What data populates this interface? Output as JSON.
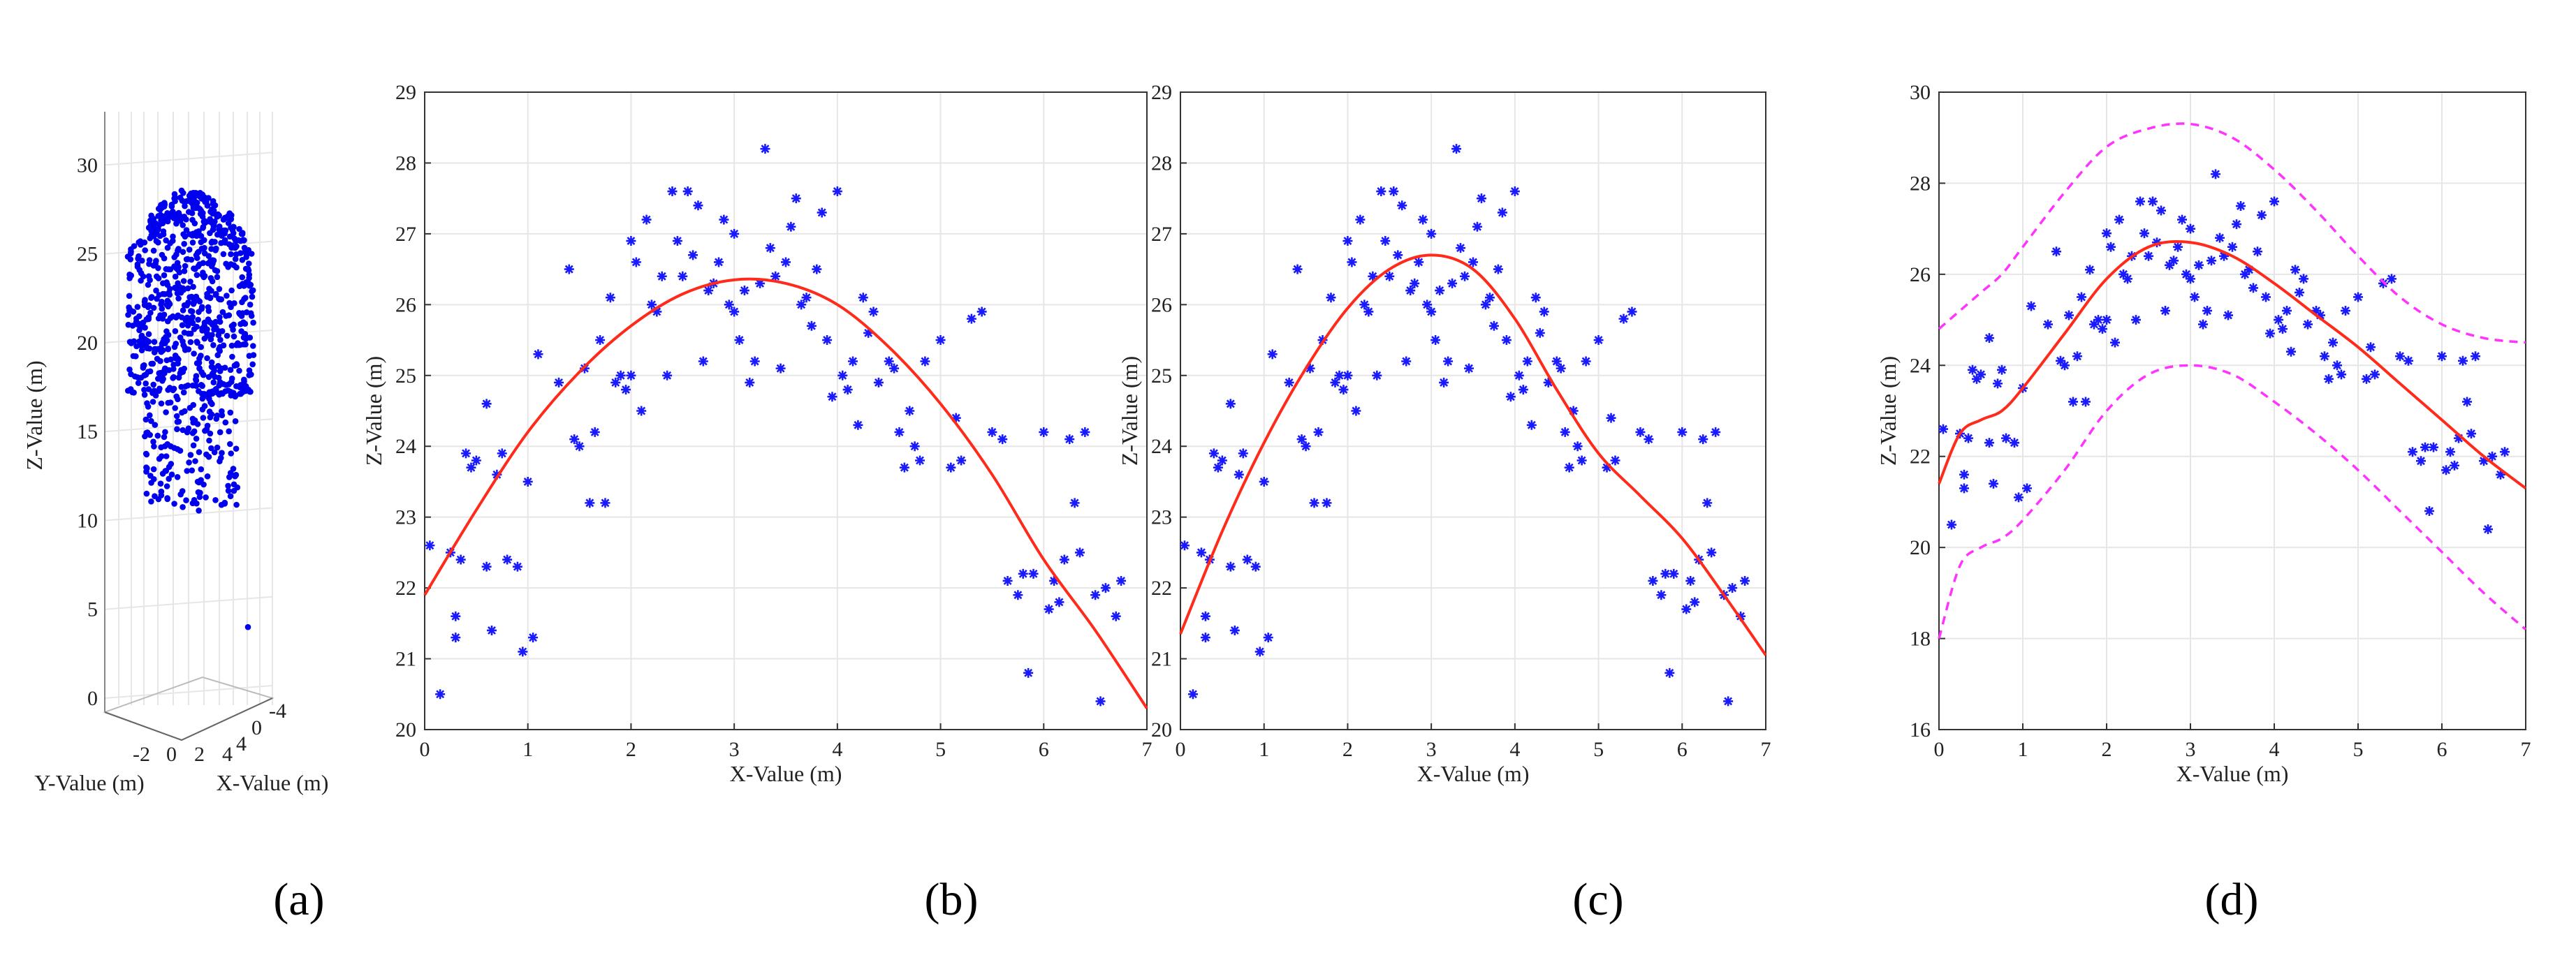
{
  "chart_data": [
    {
      "id": "a",
      "panel_label": "(a)",
      "type": "scatter3d",
      "xlabel": "X-Value (m)",
      "ylabel": "Y-Value (m)",
      "zlabel": "Z-Value (m)",
      "z_ticks": [
        0,
        5,
        10,
        15,
        20,
        25,
        30
      ],
      "y_ticks": [
        "-2",
        "0",
        "2",
        "4"
      ],
      "x_ticks": [
        "4",
        "0",
        "-4"
      ],
      "zlim": [
        0,
        33
      ],
      "points_note": "dense vertical cluster of tree crown points, z roughly 10-28 m, one outlier near z=4",
      "outliers": [
        {
          "z": 4
        }
      ]
    },
    {
      "id": "b",
      "panel_label": "(b)",
      "type": "scatter",
      "xlabel": "X-Value (m)",
      "ylabel": "Z-Value (m)",
      "xlim": [
        0,
        7
      ],
      "ylim": [
        20,
        29
      ],
      "x_ticks": [
        0,
        1,
        2,
        3,
        4,
        5,
        6,
        7
      ],
      "y_ticks": [
        20,
        21,
        22,
        23,
        24,
        25,
        26,
        27,
        28,
        29
      ],
      "grid": true,
      "fit": {
        "x": [
          0,
          0.5,
          1,
          1.5,
          2,
          2.5,
          3,
          3.5,
          4,
          4.5,
          5,
          5.5,
          6,
          6.5,
          7
        ],
        "y": [
          21.9,
          23.1,
          24.2,
          25.05,
          25.7,
          26.15,
          26.35,
          26.3,
          26.0,
          25.4,
          24.6,
          23.6,
          22.4,
          21.4,
          20.3
        ]
      }
    },
    {
      "id": "c",
      "panel_label": "(c)",
      "type": "scatter",
      "xlabel": "X-Value (m)",
      "ylabel": "Z-Value (m)",
      "xlim": [
        0,
        7
      ],
      "ylim": [
        20,
        29
      ],
      "x_ticks": [
        0,
        1,
        2,
        3,
        4,
        5,
        6,
        7
      ],
      "y_ticks": [
        20,
        21,
        22,
        23,
        24,
        25,
        26,
        27,
        28,
        29
      ],
      "grid": true,
      "fit": {
        "x": [
          0,
          0.5,
          1,
          1.5,
          2,
          2.5,
          3,
          3.5,
          4,
          4.5,
          5,
          5.5,
          6,
          6.5,
          7
        ],
        "y": [
          21.35,
          22.8,
          24.05,
          25.1,
          25.95,
          26.5,
          26.7,
          26.5,
          25.8,
          24.8,
          23.9,
          23.3,
          22.7,
          21.9,
          21.05
        ]
      }
    },
    {
      "id": "d",
      "panel_label": "(d)",
      "type": "scatter",
      "xlabel": "X-Value (m)",
      "ylabel": "Z-Value (m)",
      "xlim": [
        0,
        7
      ],
      "ylim": [
        16,
        30
      ],
      "x_ticks": [
        0,
        1,
        2,
        3,
        4,
        5,
        6,
        7
      ],
      "y_ticks": [
        16,
        18,
        20,
        22,
        24,
        26,
        28,
        30
      ],
      "grid": true,
      "fit": {
        "x": [
          0,
          0.25,
          0.5,
          0.75,
          1,
          1.5,
          2,
          2.5,
          3,
          3.5,
          4,
          4.5,
          5,
          5.5,
          6,
          6.5,
          7
        ],
        "y": [
          21.4,
          22.5,
          22.8,
          23.0,
          23.5,
          24.7,
          25.9,
          26.6,
          26.7,
          26.4,
          25.8,
          25.1,
          24.4,
          23.6,
          22.8,
          22.0,
          21.3
        ]
      },
      "upper_band": {
        "x": [
          0,
          0.25,
          0.5,
          0.75,
          1,
          1.5,
          2,
          2.5,
          3,
          3.5,
          4,
          4.5,
          5,
          5.5,
          6,
          6.5,
          7
        ],
        "y": [
          24.8,
          25.2,
          25.6,
          26.0,
          26.6,
          27.8,
          28.8,
          29.2,
          29.3,
          29.0,
          28.3,
          27.4,
          26.4,
          25.5,
          24.9,
          24.6,
          24.5
        ]
      },
      "lower_band": {
        "x": [
          0,
          0.25,
          0.5,
          0.75,
          1,
          1.5,
          2,
          2.5,
          3,
          3.5,
          4,
          4.5,
          5,
          5.5,
          6,
          6.5,
          7
        ],
        "y": [
          18.0,
          19.6,
          20.0,
          20.2,
          20.6,
          21.7,
          23.0,
          23.8,
          24.0,
          23.8,
          23.2,
          22.5,
          21.7,
          20.8,
          19.9,
          19.0,
          18.2
        ]
      }
    }
  ],
  "scatter_points": [
    [
      0.05,
      22.6
    ],
    [
      0.15,
      20.5
    ],
    [
      0.25,
      22.5
    ],
    [
      0.3,
      21.6
    ],
    [
      0.3,
      21.3
    ],
    [
      0.35,
      22.4
    ],
    [
      0.4,
      23.9
    ],
    [
      0.45,
      23.7
    ],
    [
      0.5,
      23.8
    ],
    [
      0.6,
      22.3
    ],
    [
      0.65,
      21.4
    ],
    [
      0.6,
      24.6
    ],
    [
      0.7,
      23.6
    ],
    [
      0.75,
      23.9
    ],
    [
      0.8,
      22.4
    ],
    [
      0.9,
      22.3
    ],
    [
      0.95,
      21.1
    ],
    [
      1.0,
      23.5
    ],
    [
      1.05,
      21.3
    ],
    [
      1.1,
      25.3
    ],
    [
      1.3,
      24.9
    ],
    [
      1.4,
      26.5
    ],
    [
      1.45,
      24.1
    ],
    [
      1.5,
      24.0
    ],
    [
      1.55,
      25.1
    ],
    [
      1.6,
      23.2
    ],
    [
      1.65,
      24.2
    ],
    [
      1.7,
      25.5
    ],
    [
      1.75,
      23.2
    ],
    [
      1.8,
      26.1
    ],
    [
      1.85,
      24.9
    ],
    [
      1.9,
      25.0
    ],
    [
      1.95,
      24.8
    ],
    [
      2.0,
      25.0
    ],
    [
      2.0,
      26.9
    ],
    [
      2.05,
      26.6
    ],
    [
      2.1,
      24.5
    ],
    [
      2.15,
      27.2
    ],
    [
      2.2,
      26.0
    ],
    [
      2.25,
      25.9
    ],
    [
      2.3,
      26.4
    ],
    [
      2.35,
      25.0
    ],
    [
      2.4,
      27.6
    ],
    [
      2.45,
      26.9
    ],
    [
      2.5,
      26.4
    ],
    [
      2.55,
      27.6
    ],
    [
      2.6,
      26.7
    ],
    [
      2.65,
      27.4
    ],
    [
      2.7,
      25.2
    ],
    [
      2.75,
      26.2
    ],
    [
      2.8,
      26.3
    ],
    [
      2.85,
      26.6
    ],
    [
      2.9,
      27.2
    ],
    [
      2.95,
      26.0
    ],
    [
      3.0,
      27.0
    ],
    [
      3.0,
      25.9
    ],
    [
      3.05,
      25.5
    ],
    [
      3.1,
      26.2
    ],
    [
      3.15,
      24.9
    ],
    [
      3.2,
      25.2
    ],
    [
      3.25,
      26.3
    ],
    [
      3.3,
      28.2
    ],
    [
      3.35,
      26.8
    ],
    [
      3.4,
      26.4
    ],
    [
      3.45,
      25.1
    ],
    [
      3.5,
      26.6
    ],
    [
      3.55,
      27.1
    ],
    [
      3.6,
      27.5
    ],
    [
      3.65,
      26.0
    ],
    [
      3.7,
      26.1
    ],
    [
      3.75,
      25.7
    ],
    [
      3.8,
      26.5
    ],
    [
      3.85,
      27.3
    ],
    [
      3.9,
      25.5
    ],
    [
      3.95,
      24.7
    ],
    [
      4.0,
      27.6
    ],
    [
      4.05,
      25.0
    ],
    [
      4.1,
      24.8
    ],
    [
      4.15,
      25.2
    ],
    [
      4.2,
      24.3
    ],
    [
      4.25,
      26.1
    ],
    [
      4.3,
      25.6
    ],
    [
      4.35,
      25.9
    ],
    [
      4.4,
      24.9
    ],
    [
      4.5,
      25.2
    ],
    [
      4.55,
      25.1
    ],
    [
      4.6,
      24.2
    ],
    [
      4.65,
      23.7
    ],
    [
      4.7,
      24.5
    ],
    [
      4.75,
      24.0
    ],
    [
      4.8,
      23.8
    ],
    [
      4.85,
      25.2
    ],
    [
      5.0,
      25.5
    ],
    [
      5.1,
      23.7
    ],
    [
      5.15,
      24.4
    ],
    [
      5.2,
      23.8
    ],
    [
      5.3,
      25.8
    ],
    [
      5.4,
      25.9
    ],
    [
      5.5,
      24.2
    ],
    [
      5.6,
      24.1
    ],
    [
      5.65,
      22.1
    ],
    [
      5.75,
      21.9
    ],
    [
      5.8,
      22.2
    ],
    [
      5.85,
      20.8
    ],
    [
      5.9,
      22.2
    ],
    [
      6.0,
      24.2
    ],
    [
      6.05,
      21.7
    ],
    [
      6.1,
      22.1
    ],
    [
      6.15,
      21.8
    ],
    [
      6.2,
      22.4
    ],
    [
      6.25,
      24.1
    ],
    [
      6.3,
      23.2
    ],
    [
      6.35,
      22.5
    ],
    [
      6.4,
      24.2
    ],
    [
      6.5,
      21.9
    ],
    [
      6.55,
      20.4
    ],
    [
      6.6,
      22.0
    ],
    [
      6.7,
      21.6
    ],
    [
      6.75,
      22.1
    ]
  ]
}
